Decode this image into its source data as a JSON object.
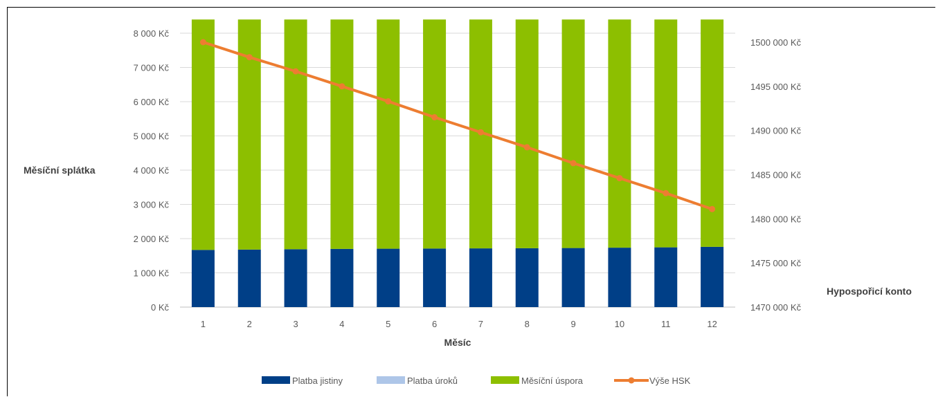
{
  "chart_data": {
    "type": "bar",
    "stacked": true,
    "categories": [
      "1",
      "2",
      "3",
      "4",
      "5",
      "6",
      "7",
      "8",
      "9",
      "10",
      "11",
      "12"
    ],
    "xlabel": "Měsíc",
    "ylabel": "Měsíční splátka",
    "y2label": "Hypospořicí konto",
    "ylim": [
      0,
      8000
    ],
    "y2lim": [
      1470000,
      1500000
    ],
    "y_ticks": [
      "0 Kč",
      "1 000 Kč",
      "2 000 Kč",
      "3 000 Kč",
      "4 000 Kč",
      "5 000 Kč",
      "6 000 Kč",
      "7 000 Kč",
      "8 000 Kč"
    ],
    "y2_ticks": [
      "1470 000 Kč",
      "1475 000 Kč",
      "1480 000 Kč",
      "1485 000 Kč",
      "1490 000 Kč",
      "1495 000 Kč",
      "1500 000 Kč"
    ],
    "grid": true,
    "legend_position": "bottom",
    "series": [
      {
        "name": "Platba jistiny",
        "axis": "left",
        "kind": "bar",
        "color": "#003F87",
        "values": [
          1670,
          1680,
          1690,
          1700,
          1705,
          1710,
          1715,
          1720,
          1725,
          1735,
          1745,
          1760
        ]
      },
      {
        "name": "Platba úroků",
        "axis": "left",
        "kind": "bar",
        "color": "#AEC6E8",
        "values": [
          0,
          0,
          0,
          0,
          0,
          0,
          0,
          0,
          0,
          0,
          0,
          0
        ]
      },
      {
        "name": "Měsíční úspora",
        "axis": "left",
        "kind": "bar",
        "color": "#8DBF00",
        "values": [
          6730,
          6720,
          6710,
          6700,
          6695,
          6690,
          6685,
          6680,
          6675,
          6665,
          6655,
          6640
        ]
      },
      {
        "name": "Výše HSK",
        "axis": "right",
        "kind": "line",
        "color": "#ED7D31",
        "values": [
          1500000,
          1498300,
          1496700,
          1495000,
          1493300,
          1491500,
          1489800,
          1488100,
          1486300,
          1484600,
          1482900,
          1481100
        ]
      }
    ]
  }
}
